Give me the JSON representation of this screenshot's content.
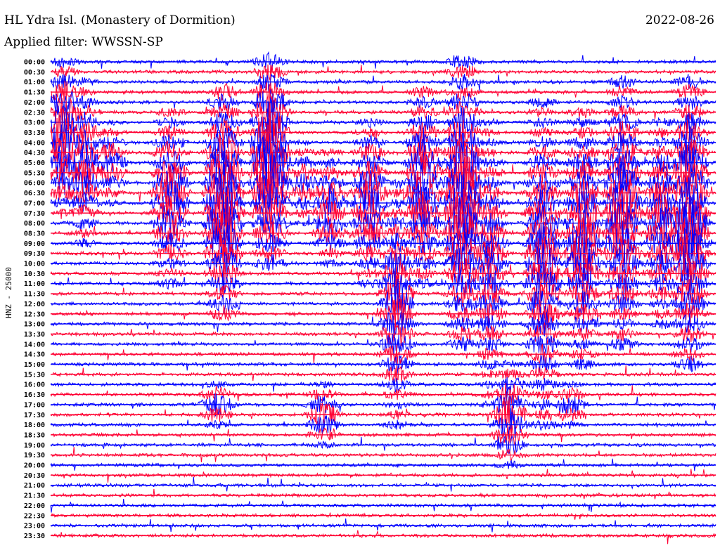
{
  "header": {
    "station": "HL Ydra Isl. (Monastery of Dormition)",
    "filter": "Applied filter: WWSSN-SP",
    "date": "2022-08-26"
  },
  "chart_data": {
    "type": "line",
    "title": "HL Ydra Isl. (Monastery of Dormition)",
    "subtitle": "Applied filter: WWSSN-SP",
    "ylabel": "HNZ - 25000",
    "row_labels": [
      "00:00",
      "00:30",
      "01:00",
      "01:30",
      "02:00",
      "02:30",
      "03:00",
      "03:30",
      "04:00",
      "04:30",
      "05:00",
      "05:30",
      "06:00",
      "06:30",
      "07:00",
      "07:30",
      "08:00",
      "08:30",
      "09:00",
      "09:30",
      "10:00",
      "10:30",
      "11:00",
      "11:30",
      "12:00",
      "12:30",
      "13:00",
      "13:30",
      "14:00",
      "14:30",
      "15:00",
      "15:30",
      "16:00",
      "16:30",
      "17:00",
      "17:30",
      "18:00",
      "18:30",
      "19:00",
      "19:30",
      "20:00",
      "20:30",
      "21:00",
      "21:30",
      "22:00",
      "22:30",
      "23:00",
      "23:30"
    ],
    "trace_colors": [
      "#0000ff",
      "#ff0033"
    ],
    "grid": false,
    "legend": "none"
  }
}
